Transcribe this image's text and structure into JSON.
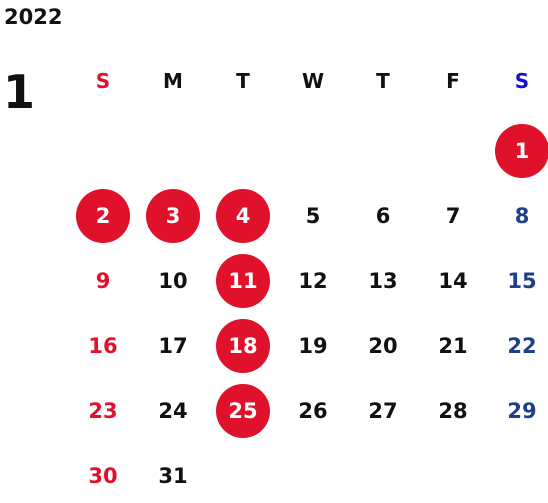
{
  "calendar": {
    "year": "2022",
    "month": "1",
    "weekdays": [
      "S",
      "M",
      "T",
      "W",
      "T",
      "F",
      "S"
    ],
    "first_weekday_index": 6,
    "days_in_month": 31,
    "holidays": [
      1,
      2,
      3,
      4,
      11,
      18,
      25
    ],
    "colors": {
      "sunday": "#e0112b",
      "saturday": "#1f3f8c",
      "saturday_header": "#1111cc",
      "holiday_circle": "#e0112b",
      "holiday_text": "#ffffff",
      "weekday_text": "#111111"
    }
  }
}
